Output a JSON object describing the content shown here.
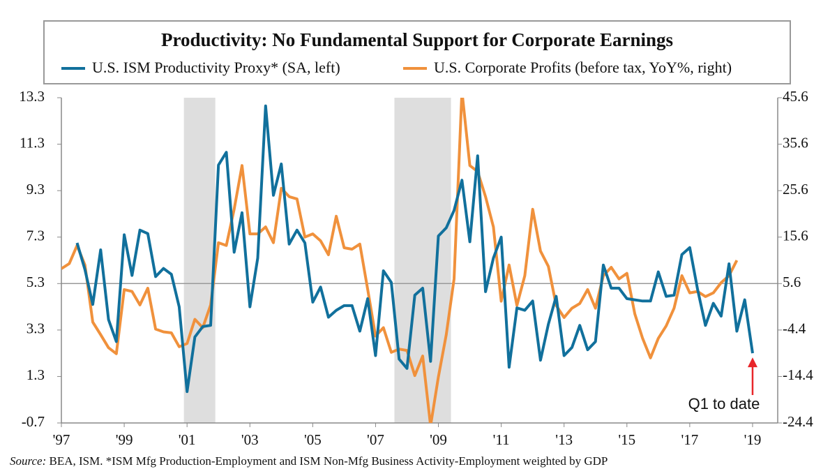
{
  "chart_data": {
    "type": "line",
    "title": "Productivity: No Fundamental Support for Corporate Earnings",
    "x": [
      1997,
      1997.25,
      1997.5,
      1997.75,
      1998,
      1998.25,
      1998.5,
      1998.75,
      1999,
      1999.25,
      1999.5,
      1999.75,
      2000,
      2000.25,
      2000.5,
      2000.75,
      2001,
      2001.25,
      2001.5,
      2001.75,
      2002,
      2002.25,
      2002.5,
      2002.75,
      2003,
      2003.25,
      2003.5,
      2003.75,
      2004,
      2004.25,
      2004.5,
      2004.75,
      2005,
      2005.25,
      2005.5,
      2005.75,
      2006,
      2006.25,
      2006.5,
      2006.75,
      2007,
      2007.25,
      2007.5,
      2007.75,
      2008,
      2008.25,
      2008.5,
      2008.75,
      2009,
      2009.25,
      2009.5,
      2009.75,
      2010,
      2010.25,
      2010.5,
      2010.75,
      2011,
      2011.25,
      2011.5,
      2011.75,
      2012,
      2012.25,
      2012.5,
      2012.75,
      2013,
      2013.25,
      2013.5,
      2013.75,
      2014,
      2014.25,
      2014.5,
      2014.75,
      2015,
      2015.25,
      2015.5,
      2015.75,
      2016,
      2016.25,
      2016.5,
      2016.75,
      2017,
      2017.25,
      2017.5,
      2017.75,
      2018,
      2018.25,
      2018.5,
      2018.75,
      2019
    ],
    "series": [
      {
        "name": "U.S. ISM Productivity Proxy* (SA, left)",
        "color": "#11709c",
        "axis": "y",
        "values": [
          null,
          null,
          7.05,
          5.9,
          4.4,
          6.75,
          3.75,
          2.8,
          7.4,
          5.65,
          7.6,
          7.45,
          5.6,
          5.95,
          5.7,
          4.3,
          0.65,
          3.0,
          3.45,
          3.5,
          10.4,
          10.95,
          6.65,
          8.35,
          4.3,
          6.4,
          12.95,
          9.1,
          10.45,
          7.0,
          7.6,
          7.05,
          4.5,
          5.15,
          3.85,
          4.15,
          4.35,
          4.35,
          3.25,
          4.65,
          2.2,
          5.85,
          5.35,
          2.05,
          1.65,
          4.8,
          5.1,
          1.95,
          7.35,
          7.7,
          8.45,
          9.75,
          7.1,
          10.8,
          4.95,
          6.4,
          7.3,
          1.7,
          4.25,
          4.15,
          4.55,
          2.0,
          3.55,
          4.75,
          2.2,
          2.55,
          3.5,
          2.45,
          2.8,
          6.1,
          5.1,
          5.1,
          4.65,
          4.6,
          4.55,
          4.55,
          5.8,
          4.75,
          4.8,
          6.55,
          6.85,
          5.05,
          3.5,
          4.45,
          3.9,
          6.15,
          3.25,
          4.6,
          2.3
        ]
      },
      {
        "name": "U.S. Corporate Profits (before tax, YoY%, right)",
        "color": "#f0913c",
        "axis": "y2",
        "values": [
          8.8,
          9.9,
          13.8,
          9.6,
          -2.7,
          -5.4,
          -8.2,
          -9.5,
          4.3,
          3.9,
          1.0,
          4.6,
          -4.2,
          -4.8,
          -5.0,
          -8.0,
          -7.3,
          -2.1,
          -3.9,
          1.0,
          14.4,
          13.8,
          21.6,
          31.0,
          16.3,
          16.3,
          17.8,
          14.4,
          26.1,
          24.3,
          23.8,
          15.6,
          16.3,
          14.8,
          11.8,
          20.1,
          13.3,
          13.0,
          14.1,
          4.3,
          -5.7,
          -3.9,
          -9.2,
          -8.5,
          -8.8,
          -14.2,
          -10.0,
          -25,
          -14.5,
          -5.4,
          6.6,
          47,
          31.0,
          29.7,
          24.3,
          17.8,
          1.8,
          9.6,
          0.9,
          7.3,
          21.6,
          12.6,
          9.3,
          0.9,
          -1.7,
          0.3,
          1.3,
          4.3,
          0.3,
          7.3,
          9.1,
          6.6,
          7.8,
          -0.9,
          -6.2,
          -10.4,
          -6.2,
          -3.5,
          0.3,
          7.3,
          3.6,
          3.9,
          2.8,
          3.6,
          5.8,
          7.3,
          10.6,
          null,
          null
        ]
      }
    ],
    "xlim": [
      1997,
      2019.8
    ],
    "xticks": [
      {
        "value": 1997,
        "label": "'97"
      },
      {
        "value": 1999,
        "label": "'99"
      },
      {
        "value": 2001,
        "label": "'01"
      },
      {
        "value": 2003,
        "label": "'03"
      },
      {
        "value": 2005,
        "label": "'05"
      },
      {
        "value": 2007,
        "label": "'07"
      },
      {
        "value": 2009,
        "label": "'09"
      },
      {
        "value": 2011,
        "label": "'11"
      },
      {
        "value": 2013,
        "label": "'13"
      },
      {
        "value": 2015,
        "label": "'15"
      },
      {
        "value": 2017,
        "label": "'17"
      },
      {
        "value": 2019,
        "label": "'19"
      }
    ],
    "ylim": [
      -0.7,
      13.3
    ],
    "yticks": [
      -0.7,
      1.3,
      3.3,
      5.3,
      7.3,
      9.3,
      11.3,
      13.3
    ],
    "y2lim": [
      -24.4,
      45.6
    ],
    "y2ticks": [
      -24.4,
      -14.4,
      -4.4,
      5.6,
      15.6,
      25.6,
      35.6,
      45.6
    ],
    "reference_line": 5.3,
    "shaded": [
      [
        2000.9,
        2001.9
      ],
      [
        2007.6,
        2009.4
      ]
    ],
    "annotation": "Q1 to date",
    "source_label": "Source:",
    "source": " BEA, ISM. *ISM Mfg Production-Employment and ISM Non-Mfg Business Activity-Employment weighted by GDP"
  }
}
